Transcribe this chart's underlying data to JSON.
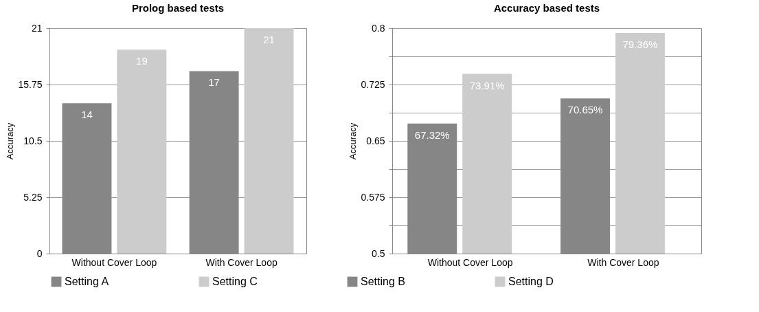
{
  "chart_data": [
    {
      "type": "bar",
      "title": "Prolog based tests",
      "ylabel": "Accuracy",
      "categories": [
        "Without Cover Loop",
        "With Cover Loop"
      ],
      "series": [
        {
          "name": "Setting A",
          "color": "#868686",
          "values": [
            14,
            17
          ]
        },
        {
          "name": "Setting C",
          "color": "#cccccc",
          "values": [
            19,
            21
          ]
        }
      ],
      "ylim": [
        0,
        21
      ],
      "yticks": [
        0,
        5.25,
        10.5,
        15.75,
        21
      ],
      "grid": "y",
      "legend": "bottom",
      "data_labels": true
    },
    {
      "type": "bar",
      "title": "Accuracy based tests",
      "ylabel": "Accuracy",
      "categories": [
        "Without Cover Loop",
        "With Cover Loop"
      ],
      "series": [
        {
          "name": "Setting B",
          "color": "#868686",
          "values": [
            0.6732,
            0.7065
          ],
          "value_labels": [
            "67.32%",
            "70.65%"
          ]
        },
        {
          "name": "Setting D",
          "color": "#cccccc",
          "values": [
            0.7391,
            0.7936
          ],
          "value_labels": [
            "73.91%",
            "79.36%"
          ]
        }
      ],
      "ylim": [
        0.5,
        0.8
      ],
      "yticks": [
        0.5,
        {
          "value": 0.5375,
          "label": null
        },
        0.575,
        {
          "value": 0.6125,
          "label": null
        },
        0.65,
        {
          "value": 0.6875,
          "label": null
        },
        0.725,
        {
          "value": 0.7625,
          "label": null
        },
        0.8
      ],
      "grid": "y",
      "legend": "bottom"
    }
  ]
}
